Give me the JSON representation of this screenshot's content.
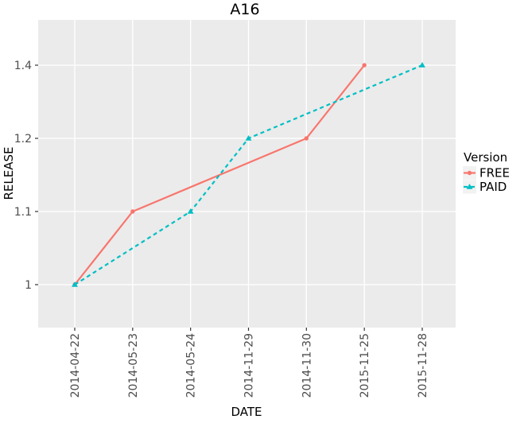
{
  "chart_data": {
    "type": "line",
    "title": "A16",
    "xlabel": "DATE",
    "ylabel": "RELEASE",
    "categories": [
      "2014-04-22",
      "2014-05-23",
      "2014-05-24",
      "2014-11-29",
      "2014-11-30",
      "2015-11-25",
      "2015-11-28"
    ],
    "y_levels": [
      "1",
      "1.1",
      "1.2",
      "1.4"
    ],
    "series": [
      {
        "name": "FREE",
        "color": "#F8766D",
        "line_style": "solid",
        "marker": "circle",
        "points": [
          {
            "date": "2014-04-22",
            "release": "1"
          },
          {
            "date": "2014-05-23",
            "release": "1.1"
          },
          {
            "date": "2014-11-30",
            "release": "1.2"
          },
          {
            "date": "2015-11-25",
            "release": "1.4"
          }
        ]
      },
      {
        "name": "PAID",
        "color": "#00BFC4",
        "line_style": "dashed",
        "marker": "triangle",
        "points": [
          {
            "date": "2014-04-22",
            "release": "1"
          },
          {
            "date": "2014-05-24",
            "release": "1.1"
          },
          {
            "date": "2014-11-29",
            "release": "1.2"
          },
          {
            "date": "2015-11-28",
            "release": "1.4"
          }
        ]
      }
    ],
    "legend": {
      "title": "Version",
      "position": "right"
    },
    "layout_hints": {
      "grid": "major-only",
      "panel_background": "shaded",
      "x_tick_label_rotation": 90
    },
    "colors": {
      "panel_bg": "#EBEBEB",
      "grid": "#FFFFFF",
      "axis_text": "#4D4D4D",
      "tick_mark": "#333333",
      "title_text": "#000000",
      "legend_key_bg": "#F2F2F2"
    }
  }
}
